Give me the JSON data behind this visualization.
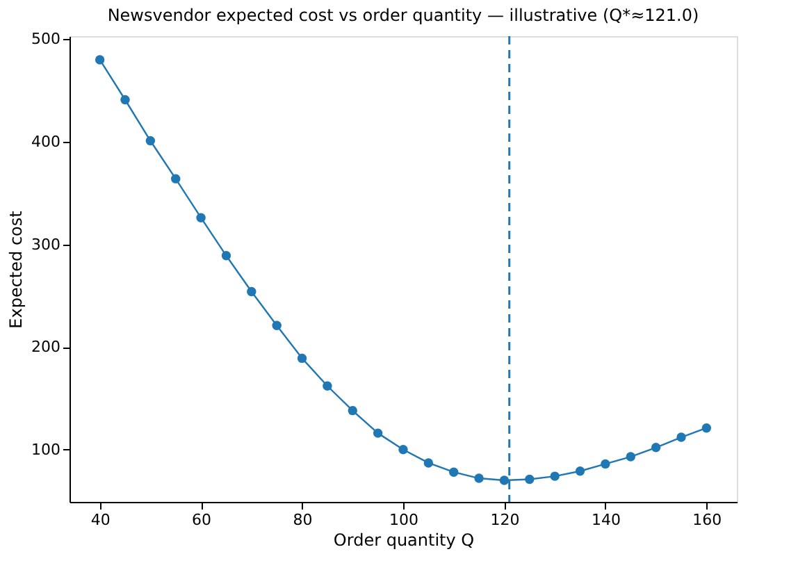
{
  "chart_data": {
    "type": "line",
    "title": "Newsvendor expected cost vs order quantity — illustrative (Q*≈121.0)",
    "xlabel": "Order quantity Q",
    "ylabel": "Expected cost",
    "x": [
      40,
      45,
      50,
      55,
      60,
      65,
      70,
      75,
      80,
      85,
      90,
      95,
      100,
      105,
      110,
      115,
      120,
      125,
      130,
      135,
      140,
      145,
      150,
      155,
      160
    ],
    "series": [
      {
        "color": "#1f77b4",
        "values": [
          480,
          441,
          401,
          364,
          326,
          289,
          254,
          221,
          189,
          162,
          138,
          116,
          100,
          87,
          78,
          72,
          70,
          71,
          74,
          79,
          86,
          93,
          102,
          112,
          121
        ]
      }
    ],
    "xlim": [
      34,
      166
    ],
    "ylim": [
      49,
      503
    ],
    "xticks": [
      40,
      60,
      80,
      100,
      120,
      140,
      160
    ],
    "yticks": [
      100,
      200,
      300,
      400,
      500
    ],
    "ref_lines": [
      {
        "axis": "x",
        "value": 121.0,
        "color": "#1f77b4",
        "line_style": "dashed"
      }
    ],
    "marker": "circle",
    "line_style": "solid",
    "grid": false
  }
}
